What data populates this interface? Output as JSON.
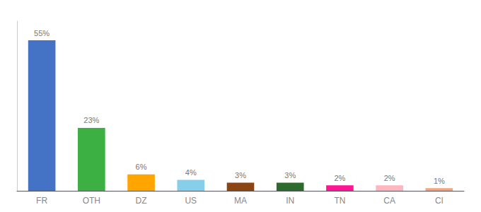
{
  "chart_data": {
    "type": "bar",
    "categories": [
      "FR",
      "OTH",
      "DZ",
      "US",
      "MA",
      "IN",
      "TN",
      "CA",
      "CI"
    ],
    "values": [
      55,
      23,
      6,
      4,
      3,
      3,
      2,
      2,
      1
    ],
    "value_labels": [
      "55%",
      "23%",
      "6%",
      "4%",
      "3%",
      "3%",
      "2%",
      "2%",
      "1%"
    ],
    "colors": [
      "#4472c4",
      "#3cb043",
      "#ffa500",
      "#87ceeb",
      "#8b4513",
      "#2d6a2d",
      "#ff1493",
      "#ffb6c1",
      "#f4a580"
    ],
    "ylim": [
      0,
      62
    ],
    "data_labels": true,
    "tick_labels": "x",
    "grid": false
  }
}
